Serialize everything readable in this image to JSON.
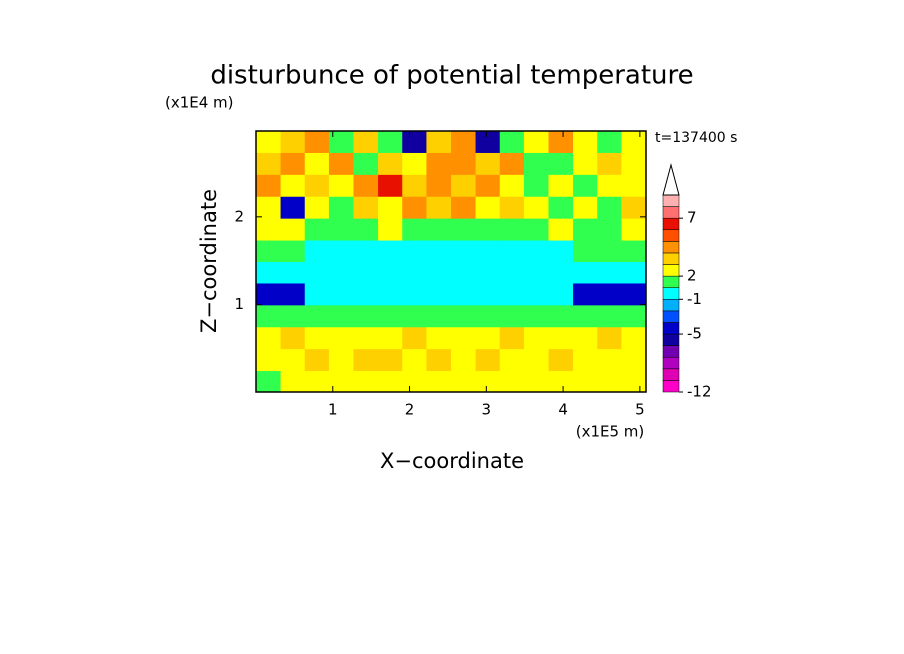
{
  "chart_data": {
    "type": "contour",
    "title": "disturbunce of potential temperature",
    "ylabel": "Z−coordinate",
    "xlabel": "X−coordinate",
    "y_unit": "(x1E4 m)",
    "x_unit": "(x1E5 m)",
    "annotation": "t=137400 s",
    "xlim": [
      0,
      5.08
    ],
    "ylim": [
      0,
      2.98
    ],
    "xticks": [
      1,
      2,
      3,
      4,
      5
    ],
    "yticks": [
      1,
      2
    ],
    "x": [
      0.16,
      0.48,
      0.79,
      1.11,
      1.43,
      1.75,
      2.06,
      2.38,
      2.7,
      3.02,
      3.33,
      3.65,
      3.97,
      4.29,
      4.6,
      4.92
    ],
    "y": [
      0.12,
      0.37,
      0.62,
      0.87,
      1.12,
      1.37,
      1.61,
      1.86,
      2.11,
      2.36,
      2.61,
      2.86
    ],
    "z": [
      [
        1.5,
        2.5,
        2.5,
        2.5,
        2.5,
        2.5,
        2.5,
        2.5,
        2.5,
        2.5,
        2.5,
        2.5,
        2.5,
        2.5,
        2.5,
        2.5
      ],
      [
        2.5,
        2.5,
        3.5,
        2.5,
        3.5,
        3.5,
        2.5,
        3.5,
        2.5,
        3.5,
        2.5,
        2.5,
        3.5,
        2.5,
        2.5,
        2.5
      ],
      [
        2.5,
        3.5,
        2.5,
        2.5,
        2.5,
        2.5,
        3.5,
        2.5,
        2.5,
        2.5,
        3.5,
        2.5,
        2.5,
        2.5,
        3.5,
        2.5
      ],
      [
        1.5,
        1.5,
        1.5,
        1.5,
        1.5,
        1.5,
        1.5,
        1.5,
        1.5,
        1.5,
        1.5,
        1.5,
        1.5,
        1.5,
        1.5,
        1.5
      ],
      [
        -5,
        -5,
        0,
        0,
        0,
        0,
        0,
        0,
        0,
        0,
        0,
        0,
        0,
        -5,
        -5,
        -5
      ],
      [
        0,
        0,
        0,
        0,
        0,
        0,
        0,
        0,
        0,
        0,
        0,
        0,
        0,
        0,
        0,
        0
      ],
      [
        1.5,
        1.5,
        0,
        0,
        0,
        0,
        0,
        0,
        0,
        0,
        0,
        0,
        0,
        1.5,
        1.5,
        1.5
      ],
      [
        2.5,
        2.5,
        1.5,
        1.5,
        1.5,
        2.5,
        1.5,
        1.5,
        1.5,
        1.5,
        1.5,
        1.5,
        2.5,
        1.5,
        1.5,
        2.5
      ],
      [
        2.5,
        -5,
        2.5,
        1.5,
        3.5,
        2.5,
        4.5,
        3.5,
        4.5,
        2.5,
        3.5,
        2.5,
        1.5,
        2.5,
        1.5,
        3.5
      ],
      [
        4.5,
        2.5,
        3.5,
        2.5,
        4.5,
        6.5,
        3.5,
        4.5,
        3.5,
        4.5,
        2.5,
        1.5,
        2.5,
        1.5,
        2.5,
        2.5
      ],
      [
        3.5,
        4.5,
        2.5,
        4.5,
        1.5,
        3.5,
        2.5,
        4.5,
        4.5,
        3.5,
        4.5,
        1.5,
        1.5,
        2.5,
        3.5,
        2.5
      ],
      [
        2.5,
        3.5,
        4.5,
        1.5,
        3.5,
        1.5,
        -6,
        3.5,
        4.5,
        -6,
        1.5,
        2.5,
        4.5,
        2.5,
        1.5,
        2.5
      ]
    ],
    "levels": [
      -12,
      -10,
      -8,
      -7,
      -6,
      -5,
      -3,
      -2,
      -1,
      1,
      2,
      3,
      4,
      5,
      6,
      7,
      9,
      11
    ],
    "colors": [
      "#ff00c8",
      "#e000b4",
      "#b000c0",
      "#7000b0",
      "#1000a0",
      "#0000c8",
      "#0050ff",
      "#00b0ff",
      "#00ffff",
      "#30ff50",
      "#ffff00",
      "#ffd000",
      "#ff9000",
      "#ff5000",
      "#e81000",
      "#ff7070",
      "#ffb0b0"
    ],
    "colorbar_ticks": [
      -12,
      -5,
      -1,
      2,
      7
    ]
  }
}
